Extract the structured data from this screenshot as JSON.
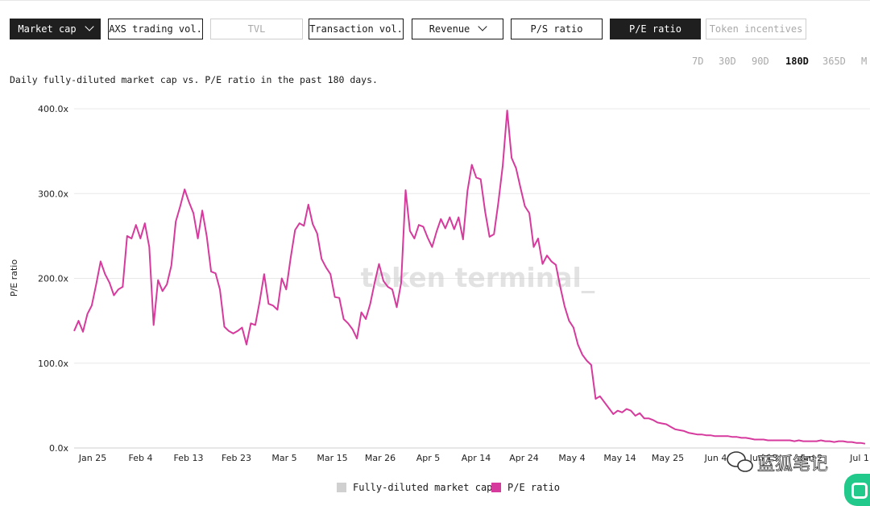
{
  "tabs": [
    {
      "label": "Market cap",
      "style": "dark",
      "dropdown": true
    },
    {
      "label": "AXS trading vol.",
      "style": "normal",
      "dropdown": false
    },
    {
      "label": "TVL",
      "style": "disabled",
      "dropdown": false
    },
    {
      "label": "Transaction vol.",
      "style": "normal",
      "dropdown": false
    },
    {
      "label": "Revenue",
      "style": "normal",
      "dropdown": true
    },
    {
      "label": "P/S ratio",
      "style": "normal",
      "dropdown": false
    },
    {
      "label": "P/E ratio",
      "style": "dark",
      "dropdown": false
    },
    {
      "label": "Token incentives",
      "style": "disabled",
      "dropdown": false
    }
  ],
  "ranges": [
    {
      "label": "7D",
      "active": false
    },
    {
      "label": "30D",
      "active": false
    },
    {
      "label": "90D",
      "active": false
    },
    {
      "label": "180D",
      "active": true
    },
    {
      "label": "365D",
      "active": false
    },
    {
      "label": "M",
      "active": false
    }
  ],
  "description": "Daily fully-diluted market cap vs. P/E ratio in the past 180 days.",
  "watermark": "token terminal_",
  "corner_watermark": "蓝狐笔记",
  "colors": {
    "pe": "#d63a9d",
    "market_cap": "#d0d0d0",
    "grid": "#e8e8e8",
    "accent": "#21c98a"
  },
  "chart_data": {
    "type": "line",
    "ylabel": "P/E ratio",
    "xlabel": "",
    "ylim": [
      0,
      400
    ],
    "y_ticks": [
      "0.0x",
      "100.0x",
      "200.0x",
      "300.0x",
      "400.0x"
    ],
    "x_ticks": [
      "Jan 25",
      "Feb 4",
      "Feb 13",
      "Feb 23",
      "Mar 5",
      "Mar 15",
      "Mar 26",
      "Apr 5",
      "Apr 14",
      "Apr 24",
      "May 4",
      "May 14",
      "May 25",
      "Jun 4",
      "Jun 13",
      "Jun 2",
      "Jul 1"
    ],
    "grid": true,
    "legend": [
      {
        "label": "Fully-diluted market cap",
        "color": "#d0d0d0"
      },
      {
        "label": "P/E ratio",
        "color": "#d63a9d"
      }
    ],
    "series": [
      {
        "name": "P/E ratio",
        "values": [
          138,
          150,
          137,
          158,
          168,
          193,
          220,
          205,
          195,
          180,
          187,
          190,
          250,
          247,
          263,
          247,
          265,
          237,
          145,
          198,
          185,
          193,
          215,
          267,
          285,
          305,
          290,
          277,
          247,
          280,
          250,
          208,
          206,
          187,
          143,
          138,
          135,
          138,
          142,
          122,
          147,
          145,
          173,
          205,
          170,
          168,
          163,
          200,
          187,
          224,
          257,
          265,
          262,
          287,
          264,
          253,
          223,
          213,
          205,
          178,
          177,
          152,
          147,
          140,
          129,
          160,
          152,
          170,
          195,
          217,
          197,
          190,
          187,
          166,
          195,
          304,
          256,
          247,
          263,
          261,
          248,
          237,
          255,
          270,
          259,
          272,
          258,
          272,
          246,
          303,
          334,
          319,
          317,
          279,
          249,
          252,
          290,
          333,
          398,
          342,
          330,
          307,
          285,
          277,
          237,
          247,
          217,
          227,
          220,
          216,
          190,
          167,
          150,
          142,
          122,
          110,
          103,
          98,
          58,
          61,
          54,
          47,
          40,
          44,
          42,
          46,
          44,
          38,
          41,
          35,
          35,
          33,
          30,
          29,
          28,
          25,
          22,
          21,
          20,
          18,
          17,
          16,
          16,
          15,
          15,
          14,
          14,
          14,
          14,
          13,
          13,
          12,
          12,
          11,
          10,
          10,
          10,
          9,
          9,
          9,
          9,
          9,
          9,
          8,
          9,
          8,
          8,
          8,
          8,
          9,
          8,
          8,
          7,
          8,
          8,
          7,
          7,
          6,
          6,
          5
        ]
      }
    ]
  }
}
